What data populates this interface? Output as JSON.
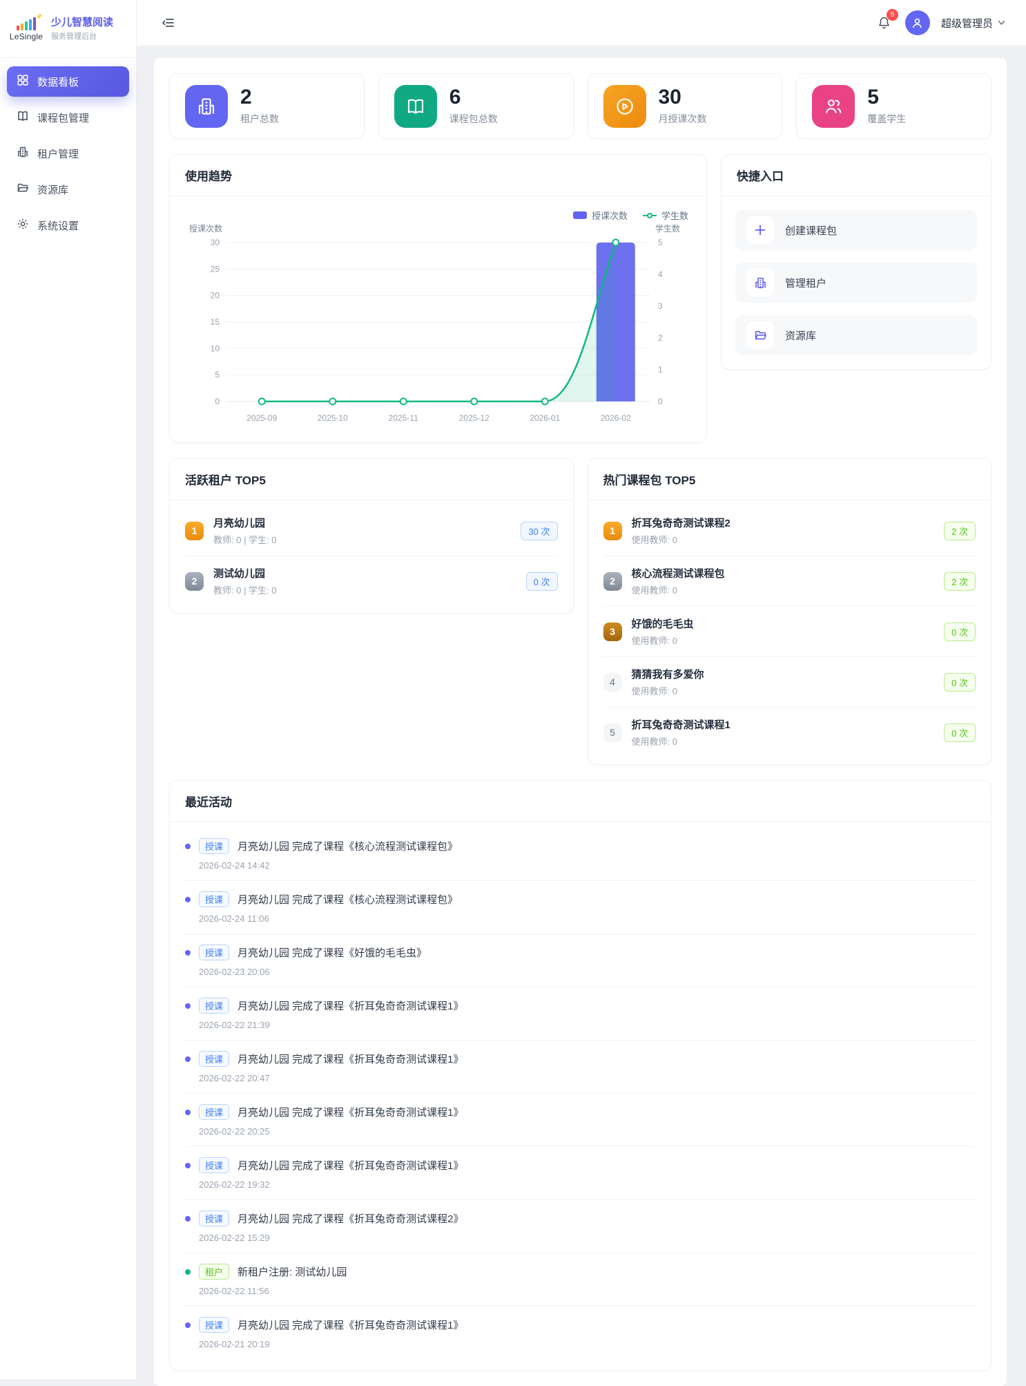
{
  "brand": {
    "logo_text": "LeSingle",
    "title": "少儿智慧阅读",
    "subtitle": "服务管理后台"
  },
  "sidebar": {
    "items": [
      {
        "label": "数据看板",
        "active": true
      },
      {
        "label": "课程包管理",
        "active": false
      },
      {
        "label": "租户管理",
        "active": false
      },
      {
        "label": "资源库",
        "active": false
      },
      {
        "label": "系统设置",
        "active": false
      }
    ]
  },
  "header": {
    "notification_count": "5",
    "user_name": "超级管理员"
  },
  "stats": [
    {
      "value": "2",
      "label": "租户总数",
      "icon": "building-icon"
    },
    {
      "value": "6",
      "label": "课程包总数",
      "icon": "book-icon"
    },
    {
      "value": "30",
      "label": "月授课次数",
      "icon": "play-icon"
    },
    {
      "value": "5",
      "label": "覆盖学生",
      "icon": "users-icon"
    }
  ],
  "trend": {
    "title": "使用趋势"
  },
  "chart_data": {
    "type": "bar",
    "categories": [
      "2025-09",
      "2025-10",
      "2025-11",
      "2025-12",
      "2026-01",
      "2026-02"
    ],
    "series": [
      {
        "name": "授课次数",
        "type": "bar",
        "axis": "left",
        "color": "#6165ee",
        "values": [
          0,
          0,
          0,
          0,
          0,
          30
        ]
      },
      {
        "name": "学生数",
        "type": "line",
        "axis": "right",
        "color": "#10b981",
        "values": [
          0,
          0,
          0,
          0,
          0,
          5
        ]
      }
    ],
    "left_axis": {
      "label": "授课次数",
      "min": 0,
      "max": 30,
      "step": 5
    },
    "right_axis": {
      "label": "学生数",
      "min": 0,
      "max": 5,
      "step": 1
    },
    "grid": true,
    "legend_position": "top-right"
  },
  "quick": {
    "title": "快捷入口",
    "items": [
      {
        "label": "创建课程包",
        "icon": "plus-icon"
      },
      {
        "label": "管理租户",
        "icon": "building-icon"
      },
      {
        "label": "资源库",
        "icon": "folder-icon"
      }
    ]
  },
  "tenants": {
    "title": "活跃租户 TOP5",
    "items": [
      {
        "rank": "1",
        "rank_style": "gold",
        "name": "月亮幼儿园",
        "sub": "教师: 0 | 学生: 0",
        "count": "30 次",
        "count_style": "blue"
      },
      {
        "rank": "2",
        "rank_style": "silver",
        "name": "测试幼儿园",
        "sub": "教师: 0 | 学生: 0",
        "count": "0 次",
        "count_style": "blue"
      }
    ]
  },
  "courses": {
    "title": "热门课程包 TOP5",
    "items": [
      {
        "rank": "1",
        "rank_style": "gold",
        "name": "折耳兔奇奇测试课程2",
        "sub": "使用教师: 0",
        "count": "2 次",
        "count_style": "green"
      },
      {
        "rank": "2",
        "rank_style": "silver",
        "name": "核心流程测试课程包",
        "sub": "使用教师: 0",
        "count": "2 次",
        "count_style": "green"
      },
      {
        "rank": "3",
        "rank_style": "bronze",
        "name": "好饿的毛毛虫",
        "sub": "使用教师: 0",
        "count": "0 次",
        "count_style": "green"
      },
      {
        "rank": "4",
        "rank_style": "plain",
        "name": "猜猜我有多爱你",
        "sub": "使用教师: 0",
        "count": "0 次",
        "count_style": "green"
      },
      {
        "rank": "5",
        "rank_style": "plain",
        "name": "折耳兔奇奇测试课程1",
        "sub": "使用教师: 0",
        "count": "0 次",
        "count_style": "green"
      }
    ]
  },
  "activities": {
    "title": "最近活动",
    "items": [
      {
        "type": "teach",
        "tag": "授课",
        "text": "月亮幼儿园 完成了课程《核心流程测试课程包》",
        "time": "2026-02-24 14:42"
      },
      {
        "type": "teach",
        "tag": "授课",
        "text": "月亮幼儿园 完成了课程《核心流程测试课程包》",
        "time": "2026-02-24 11:06"
      },
      {
        "type": "teach",
        "tag": "授课",
        "text": "月亮幼儿园 完成了课程《好饿的毛毛虫》",
        "time": "2026-02-23 20:06"
      },
      {
        "type": "teach",
        "tag": "授课",
        "text": "月亮幼儿园 完成了课程《折耳兔奇奇测试课程1》",
        "time": "2026-02-22 21:39"
      },
      {
        "type": "teach",
        "tag": "授课",
        "text": "月亮幼儿园 完成了课程《折耳兔奇奇测试课程1》",
        "time": "2026-02-22 20:47"
      },
      {
        "type": "teach",
        "tag": "授课",
        "text": "月亮幼儿园 完成了课程《折耳兔奇奇测试课程1》",
        "time": "2026-02-22 20:25"
      },
      {
        "type": "teach",
        "tag": "授课",
        "text": "月亮幼儿园 完成了课程《折耳兔奇奇测试课程1》",
        "time": "2026-02-22 19:32"
      },
      {
        "type": "teach",
        "tag": "授课",
        "text": "月亮幼儿园 完成了课程《折耳兔奇奇测试课程2》",
        "time": "2026-02-22 15:29"
      },
      {
        "type": "tenant",
        "tag": "租户",
        "text": "新租户注册: 测试幼儿园",
        "time": "2026-02-22 11:56"
      },
      {
        "type": "teach",
        "tag": "授课",
        "text": "月亮幼儿园 完成了课程《折耳兔奇奇测试课程1》",
        "time": "2026-02-21 20:19"
      }
    ]
  },
  "colors": {
    "primary": "#5d5fe8",
    "bar_color": "#6165ee",
    "line_color": "#10b981",
    "stat_purple": "#6366f1",
    "stat_green": "#11a983",
    "stat_orange_a": "#f6a425",
    "stat_orange_b": "#ee8b0e",
    "stat_pink": "#e94386",
    "badge_red": "#ff4d4f",
    "blue": "#3d7ef7",
    "green": "#52c41a"
  }
}
